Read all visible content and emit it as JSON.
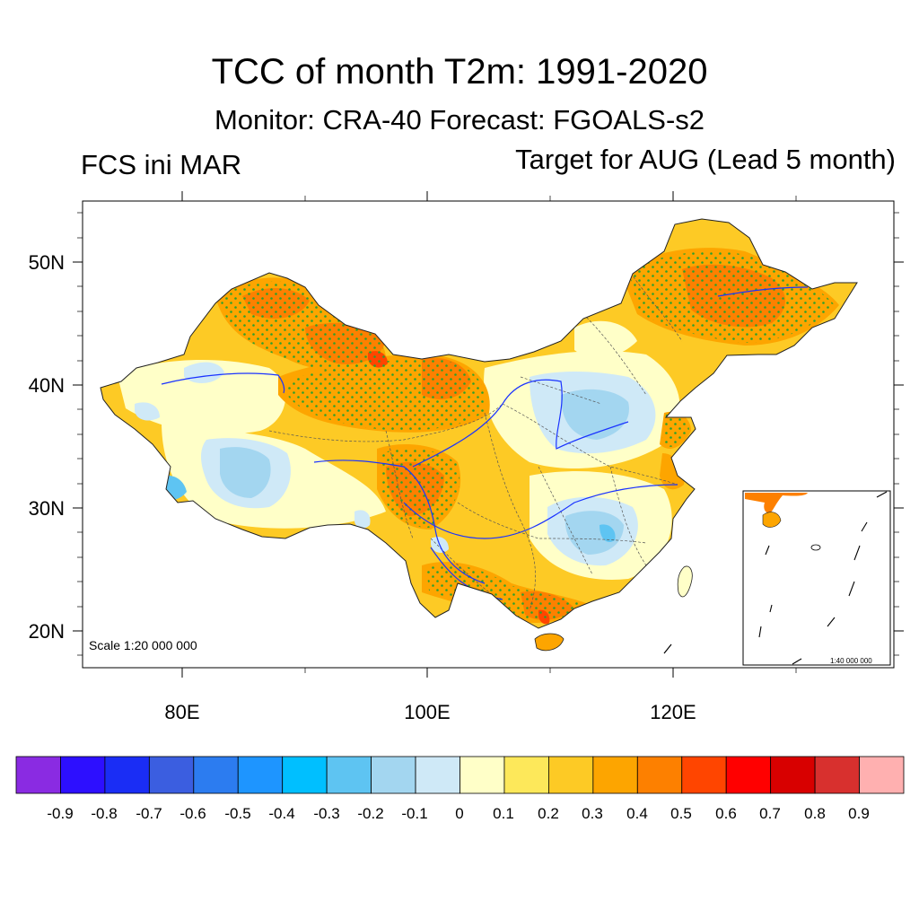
{
  "header": {
    "title": "TCC of month T2m: 1991-2020",
    "subtitle": "Monitor: CRA-40   Forecast: FGOALS-s2",
    "left_label": "FCS ini MAR",
    "right_label": "Target for AUG (Lead 5 month)"
  },
  "axes": {
    "lat_labels": [
      "50N",
      "40N",
      "30N",
      "20N"
    ],
    "lon_labels": [
      "80E",
      "100E",
      "120E"
    ]
  },
  "map": {
    "scale_text": "Scale 1:20 000 000",
    "inset_scale_text": "1:40 000 000"
  },
  "colorbar": {
    "labels": [
      "-0.9",
      "-0.8",
      "-0.7",
      "-0.6",
      "-0.5",
      "-0.4",
      "-0.3",
      "-0.2",
      "-0.1",
      "0",
      "0.1",
      "0.2",
      "0.3",
      "0.4",
      "0.5",
      "0.6",
      "0.7",
      "0.8",
      "0.9"
    ],
    "colors": [
      "#8a2be2",
      "#2d0fff",
      "#1a2df5",
      "#3b5ee0",
      "#2c7cf0",
      "#1e95ff",
      "#00bfff",
      "#5ec4f2",
      "#a3d6f0",
      "#cfe9f7",
      "#ffffc8",
      "#fde85a",
      "#fdca25",
      "#fda500",
      "#fd8000",
      "#ff4500",
      "#ff0000",
      "#d80000",
      "#d8302e",
      "#ffb0b0"
    ]
  },
  "colors": {
    "stipple": "#2ca02c",
    "rivers": "#1a33ff",
    "frame": "#000000"
  }
}
